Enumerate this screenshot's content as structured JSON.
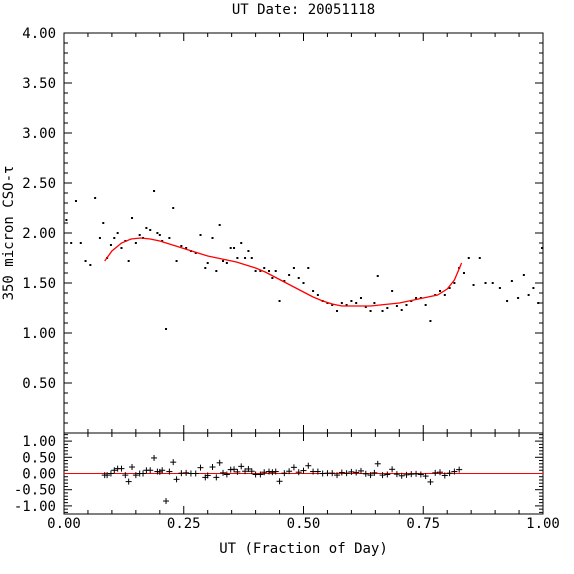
{
  "chart_data": {
    "type": "scatter",
    "title": "UT Date: 20051118",
    "xlabel": "UT (Fraction of Day)",
    "ylabel": "350 micron CSO-τ",
    "xlim": [
      0,
      1
    ],
    "main": {
      "ylim": [
        0,
        4
      ],
      "y_ticks": [
        "0.50",
        "1.00",
        "1.50",
        "2.00",
        "2.50",
        "3.00",
        "3.50",
        "4.00"
      ],
      "series": [
        {
          "kind": "points",
          "x": [
            0.005,
            0.015,
            0.025,
            0.035,
            0.045,
            0.055,
            0.065,
            0.075,
            0.082,
            0.09,
            0.098,
            0.105,
            0.112,
            0.12,
            0.128,
            0.135,
            0.142,
            0.15,
            0.158,
            0.165,
            0.172,
            0.18,
            0.188,
            0.195,
            0.2,
            0.205,
            0.213,
            0.22,
            0.228,
            0.235,
            0.245,
            0.255,
            0.265,
            0.275,
            0.285,
            0.295,
            0.3,
            0.31,
            0.318,
            0.325,
            0.332,
            0.34,
            0.348,
            0.355,
            0.362,
            0.37,
            0.378,
            0.385,
            0.392,
            0.4,
            0.41,
            0.418,
            0.428,
            0.435,
            0.442,
            0.45,
            0.46,
            0.47,
            0.48,
            0.49,
            0.5,
            0.51,
            0.52,
            0.53,
            0.54,
            0.55,
            0.56,
            0.57,
            0.58,
            0.59,
            0.6,
            0.61,
            0.62,
            0.63,
            0.64,
            0.648,
            0.655,
            0.665,
            0.675,
            0.685,
            0.695,
            0.705,
            0.715,
            0.725,
            0.735,
            0.745,
            0.755,
            0.765,
            0.775,
            0.785,
            0.795,
            0.805,
            0.815,
            0.825,
            0.835,
            0.845,
            0.855,
            0.868,
            0.88,
            0.895,
            0.91,
            0.925,
            0.935,
            0.948,
            0.96,
            0.97,
            0.98,
            0.99,
            0.998
          ],
          "y": [
            2.13,
            1.9,
            2.32,
            1.9,
            1.72,
            1.68,
            2.35,
            1.95,
            2.1,
            1.75,
            1.88,
            1.95,
            2.0,
            1.85,
            1.92,
            1.72,
            2.15,
            1.9,
            1.98,
            1.95,
            2.05,
            2.03,
            2.42,
            2.0,
            1.98,
            1.92,
            1.04,
            1.95,
            2.25,
            1.72,
            1.87,
            1.85,
            1.82,
            1.8,
            1.98,
            1.65,
            1.7,
            1.95,
            1.62,
            2.08,
            1.72,
            1.7,
            1.85,
            1.85,
            1.75,
            1.9,
            1.75,
            1.82,
            1.75,
            1.62,
            1.62,
            1.65,
            1.62,
            1.55,
            1.62,
            1.32,
            1.52,
            1.58,
            1.65,
            1.55,
            1.5,
            1.65,
            1.42,
            1.38,
            1.32,
            1.3,
            1.28,
            1.22,
            1.3,
            1.28,
            1.32,
            1.3,
            1.35,
            1.26,
            1.22,
            1.3,
            1.57,
            1.22,
            1.25,
            1.42,
            1.27,
            1.23,
            1.28,
            1.32,
            1.35,
            1.35,
            1.28,
            1.12,
            1.38,
            1.42,
            1.38,
            1.45,
            1.5,
            1.65,
            1.6,
            1.75,
            1.48,
            1.75,
            1.5,
            1.5,
            1.45,
            1.32,
            1.52,
            1.35,
            1.58,
            1.38,
            1.45,
            1.3,
            1.85
          ]
        },
        {
          "kind": "fit",
          "color": "#ff0000",
          "x": [
            0.085,
            0.1,
            0.12,
            0.14,
            0.16,
            0.18,
            0.2,
            0.22,
            0.24,
            0.26,
            0.28,
            0.3,
            0.32,
            0.34,
            0.36,
            0.38,
            0.4,
            0.42,
            0.44,
            0.46,
            0.48,
            0.5,
            0.52,
            0.54,
            0.56,
            0.58,
            0.6,
            0.62,
            0.64,
            0.66,
            0.68,
            0.7,
            0.72,
            0.74,
            0.76,
            0.78,
            0.8,
            0.815,
            0.83
          ],
          "y": [
            1.72,
            1.82,
            1.9,
            1.94,
            1.95,
            1.94,
            1.92,
            1.89,
            1.86,
            1.83,
            1.8,
            1.77,
            1.75,
            1.73,
            1.71,
            1.68,
            1.65,
            1.61,
            1.56,
            1.51,
            1.46,
            1.41,
            1.36,
            1.32,
            1.29,
            1.27,
            1.27,
            1.27,
            1.27,
            1.28,
            1.29,
            1.3,
            1.32,
            1.34,
            1.36,
            1.38,
            1.44,
            1.53,
            1.7
          ]
        }
      ]
    },
    "residuals": {
      "ylim": [
        -1.25,
        1.25
      ],
      "y_ticks": [
        "-1.00",
        "-0.50",
        "0.00",
        "0.50",
        "1.00"
      ],
      "zero_line_color": "#ff0000",
      "x": [
        0.085,
        0.09,
        0.098,
        0.105,
        0.112,
        0.12,
        0.128,
        0.135,
        0.142,
        0.15,
        0.158,
        0.165,
        0.172,
        0.18,
        0.188,
        0.195,
        0.2,
        0.205,
        0.213,
        0.22,
        0.228,
        0.235,
        0.245,
        0.255,
        0.265,
        0.275,
        0.285,
        0.295,
        0.3,
        0.31,
        0.318,
        0.325,
        0.332,
        0.34,
        0.348,
        0.355,
        0.362,
        0.37,
        0.378,
        0.385,
        0.392,
        0.4,
        0.41,
        0.418,
        0.428,
        0.435,
        0.442,
        0.45,
        0.46,
        0.47,
        0.48,
        0.49,
        0.5,
        0.51,
        0.52,
        0.53,
        0.54,
        0.55,
        0.56,
        0.57,
        0.58,
        0.59,
        0.6,
        0.61,
        0.62,
        0.63,
        0.64,
        0.648,
        0.655,
        0.665,
        0.675,
        0.685,
        0.695,
        0.705,
        0.715,
        0.725,
        0.735,
        0.745,
        0.755,
        0.765,
        0.775,
        0.785,
        0.795,
        0.805,
        0.815,
        0.825
      ],
      "y": [
        -0.05,
        -0.05,
        0.0,
        0.1,
        0.15,
        0.15,
        -0.05,
        -0.25,
        0.2,
        -0.05,
        0.0,
        0.0,
        0.1,
        0.1,
        0.48,
        0.06,
        0.05,
        0.1,
        -0.85,
        0.06,
        0.35,
        -0.18,
        0.01,
        0.02,
        0.0,
        0.0,
        0.18,
        -0.12,
        -0.06,
        0.2,
        -0.12,
        0.33,
        0.02,
        -0.03,
        0.12,
        0.13,
        0.05,
        0.22,
        0.07,
        0.14,
        0.07,
        -0.03,
        -0.03,
        0.04,
        0.06,
        0.04,
        0.06,
        -0.24,
        0.01,
        0.07,
        0.19,
        0.04,
        0.09,
        0.24,
        0.06,
        0.06,
        0.0,
        0.01,
        0.01,
        -0.05,
        0.03,
        0.01,
        0.05,
        0.03,
        0.08,
        -0.01,
        -0.05,
        0.02,
        0.3,
        -0.05,
        -0.03,
        0.13,
        -0.02,
        -0.07,
        -0.04,
        -0.02,
        -0.01,
        -0.03,
        -0.08,
        -0.26,
        0.02,
        0.04,
        -0.06,
        0.01,
        0.06,
        0.12
      ]
    },
    "x_ticks": [
      "0.00",
      "0.25",
      "0.50",
      "0.75",
      "1.00"
    ],
    "grid": false,
    "legend": "none"
  }
}
